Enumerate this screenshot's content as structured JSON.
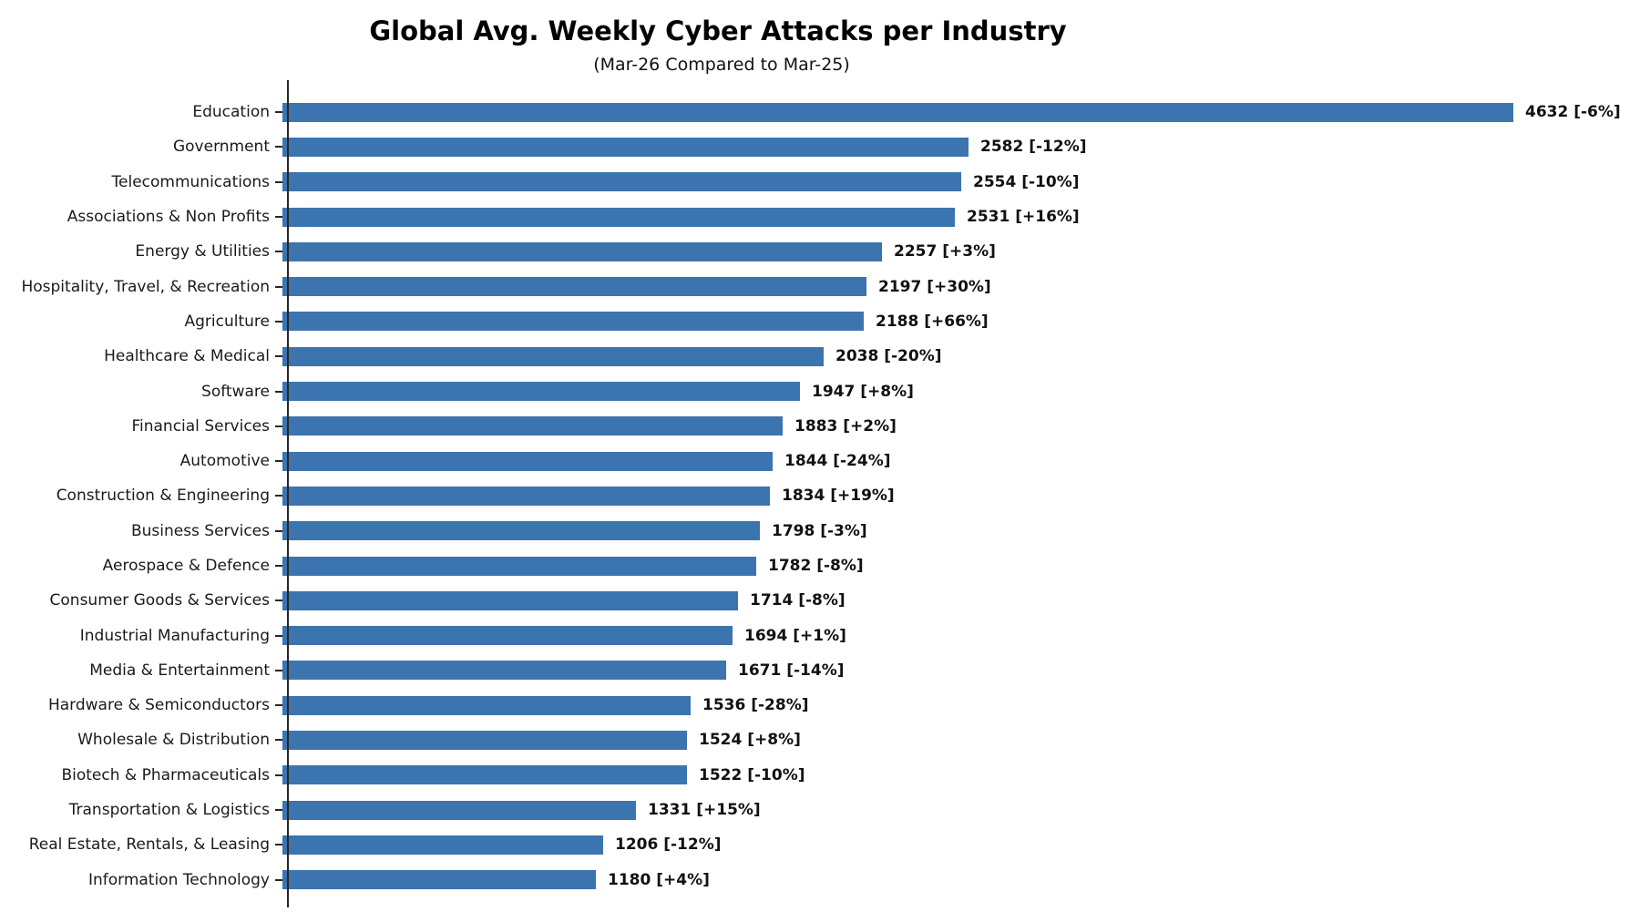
{
  "chart_data": {
    "type": "bar",
    "orientation": "horizontal",
    "title": "Global Avg. Weekly Cyber Attacks per Industry",
    "subtitle": "(Mar-26 Compared to Mar-25)",
    "xlabel": "",
    "ylabel": "",
    "grid": false,
    "legend": false,
    "bar_color": "#3c74b0",
    "axis_color": "#262626",
    "text_color": "#1a1a1a",
    "value_label_format": "{value} [{change}]",
    "xlim": [
      0,
      4632
    ],
    "categories": [
      "Education",
      "Government",
      "Telecommunications",
      "Associations & Non Profits",
      "Energy & Utilities",
      "Hospitality, Travel, & Recreation",
      "Agriculture",
      "Healthcare & Medical",
      "Software",
      "Financial Services",
      "Automotive",
      "Construction & Engineering",
      "Business Services",
      "Aerospace & Defence",
      "Consumer Goods & Services",
      "Industrial Manufacturing",
      "Media & Entertainment",
      "Hardware & Semiconductors",
      "Wholesale & Distribution",
      "Biotech & Pharmaceuticals",
      "Transportation & Logistics",
      "Real Estate, Rentals, & Leasing",
      "Information Technology"
    ],
    "values": [
      4632,
      2582,
      2554,
      2531,
      2257,
      2197,
      2188,
      2038,
      1947,
      1883,
      1844,
      1834,
      1798,
      1782,
      1714,
      1694,
      1671,
      1536,
      1524,
      1522,
      1331,
      1206,
      1180
    ],
    "changes": [
      "-6%",
      "-12%",
      "-10%",
      "+16%",
      "+3%",
      "+30%",
      "+66%",
      "-20%",
      "+8%",
      "+2%",
      "-24%",
      "+19%",
      "-3%",
      "-8%",
      "-8%",
      "+1%",
      "-14%",
      "-28%",
      "+8%",
      "-10%",
      "+15%",
      "-12%",
      "+4%"
    ]
  }
}
